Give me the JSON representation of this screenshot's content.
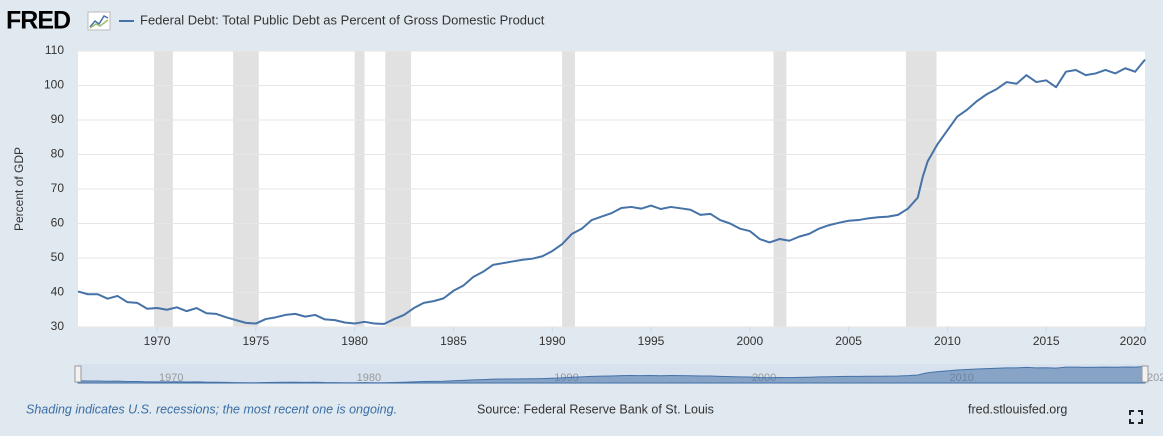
{
  "logo": "FRED",
  "chart_data": {
    "type": "line",
    "ylabel": "Percent of GDP",
    "series": [
      {
        "name": "Federal Debt: Total Public Debt as Percent of Gross Domestic Product",
        "color": "#4572a7",
        "x": [
          1966,
          1966.5,
          1967,
          1967.5,
          1968,
          1968.5,
          1969,
          1969.5,
          1970,
          1970.5,
          1971,
          1971.5,
          1972,
          1972.5,
          1973,
          1973.5,
          1974,
          1974.5,
          1975,
          1975.5,
          1976,
          1976.5,
          1977,
          1977.5,
          1978,
          1978.5,
          1979,
          1979.5,
          1980,
          1980.5,
          1981,
          1981.5,
          1982,
          1982.5,
          1983,
          1983.5,
          1984,
          1984.5,
          1985,
          1985.5,
          1986,
          1986.5,
          1987,
          1987.5,
          1988,
          1988.5,
          1989,
          1989.5,
          1990,
          1990.5,
          1991,
          1991.5,
          1992,
          1992.5,
          1993,
          1993.5,
          1994,
          1994.5,
          1995,
          1995.5,
          1996,
          1996.5,
          1997,
          1997.5,
          1998,
          1998.5,
          1999,
          1999.5,
          2000,
          2000.5,
          2001,
          2001.5,
          2002,
          2002.5,
          2003,
          2003.5,
          2004,
          2004.5,
          2005,
          2005.5,
          2006,
          2006.5,
          2007,
          2007.5,
          2008,
          2008.5,
          2008.75,
          2009,
          2009.5,
          2010,
          2010.5,
          2011,
          2011.5,
          2012,
          2012.5,
          2013,
          2013.5,
          2014,
          2014.5,
          2015,
          2015.5,
          2016,
          2016.5,
          2017,
          2017.5,
          2018,
          2018.5,
          2019,
          2019.5,
          2020
        ],
        "values": [
          40.3,
          39.5,
          39.5,
          38.2,
          39.0,
          37.2,
          37.0,
          35.3,
          35.5,
          35.0,
          35.7,
          34.6,
          35.5,
          34.0,
          33.8,
          32.8,
          32.0,
          31.2,
          31.0,
          32.3,
          32.8,
          33.5,
          33.8,
          33.0,
          33.5,
          32.2,
          32.0,
          31.3,
          31.0,
          31.5,
          31.0,
          30.9,
          32.3,
          33.5,
          35.5,
          37.0,
          37.5,
          38.3,
          40.5,
          42,
          44.5,
          46,
          48,
          48.5,
          49,
          49.5,
          49.8,
          50.5,
          52,
          54,
          57,
          58.5,
          61,
          62,
          63,
          64.5,
          64.8,
          64.3,
          65.2,
          64.2,
          64.8,
          64.4,
          64,
          62.5,
          62.8,
          61,
          60,
          58.5,
          57.8,
          55.5,
          54.5,
          55.5,
          55,
          56.2,
          57,
          58.5,
          59.5,
          60.2,
          60.8,
          61,
          61.5,
          61.8,
          62,
          62.5,
          64.3,
          67.5,
          73.5,
          78,
          83,
          87,
          91,
          93,
          95.5,
          97.5,
          99,
          101,
          100.5,
          103,
          101,
          101.5,
          99.5,
          104,
          104.5,
          103,
          103.5,
          104.5,
          103.5,
          105,
          104,
          107.5
        ]
      }
    ],
    "recessions": [
      [
        1969.85,
        1970.8
      ],
      [
        1973.85,
        1975.15
      ],
      [
        1980.0,
        1980.5
      ],
      [
        1981.55,
        1982.85
      ],
      [
        1990.5,
        1991.15
      ],
      [
        2001.2,
        2001.85
      ],
      [
        2007.9,
        2009.45
      ]
    ],
    "xlim": [
      1966,
      2020
    ],
    "xticks": [
      1970,
      1975,
      1980,
      1985,
      1990,
      1995,
      2000,
      2005,
      2010,
      2015,
      2020
    ],
    "ylim": [
      30,
      110
    ],
    "yticks": [
      30,
      40,
      50,
      60,
      70,
      80,
      90,
      100,
      110
    ],
    "grid": true
  },
  "footer": {
    "note": "Shading indicates U.S. recessions; the most recent one is ongoing.",
    "source": "Source: Federal Reserve Bank of St. Louis",
    "url": "fred.stlouisfed.org"
  }
}
